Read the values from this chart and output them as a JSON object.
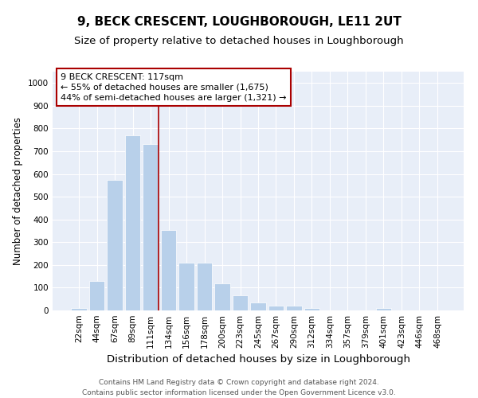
{
  "title": "9, BECK CRESCENT, LOUGHBOROUGH, LE11 2UT",
  "subtitle": "Size of property relative to detached houses in Loughborough",
  "xlabel": "Distribution of detached houses by size in Loughborough",
  "ylabel": "Number of detached properties",
  "bins": [
    "22sqm",
    "44sqm",
    "67sqm",
    "89sqm",
    "111sqm",
    "134sqm",
    "156sqm",
    "178sqm",
    "200sqm",
    "223sqm",
    "245sqm",
    "267sqm",
    "290sqm",
    "312sqm",
    "334sqm",
    "357sqm",
    "379sqm",
    "401sqm",
    "423sqm",
    "446sqm",
    "468sqm"
  ],
  "values": [
    10,
    128,
    575,
    770,
    730,
    355,
    210,
    210,
    120,
    65,
    35,
    20,
    20,
    10,
    0,
    0,
    0,
    10,
    0,
    0,
    0
  ],
  "bar_color": "#b8d0ea",
  "bar_edge_color": "white",
  "vline_x_index": 4.45,
  "vline_color": "#aa0000",
  "annotation_text": "9 BECK CRESCENT: 117sqm\n← 55% of detached houses are smaller (1,675)\n44% of semi-detached houses are larger (1,321) →",
  "annotation_box_color": "#ffffff",
  "annotation_border_color": "#aa0000",
  "ylim": [
    0,
    1050
  ],
  "yticks": [
    0,
    100,
    200,
    300,
    400,
    500,
    600,
    700,
    800,
    900,
    1000
  ],
  "plot_bg_color": "#e8eef8",
  "fig_bg_color": "#ffffff",
  "footnote": "Contains HM Land Registry data © Crown copyright and database right 2024.\nContains public sector information licensed under the Open Government Licence v3.0.",
  "title_fontsize": 11,
  "subtitle_fontsize": 9.5,
  "xlabel_fontsize": 9.5,
  "ylabel_fontsize": 8.5,
  "tick_fontsize": 7.5,
  "footnote_fontsize": 6.5,
  "annot_fontsize": 8
}
